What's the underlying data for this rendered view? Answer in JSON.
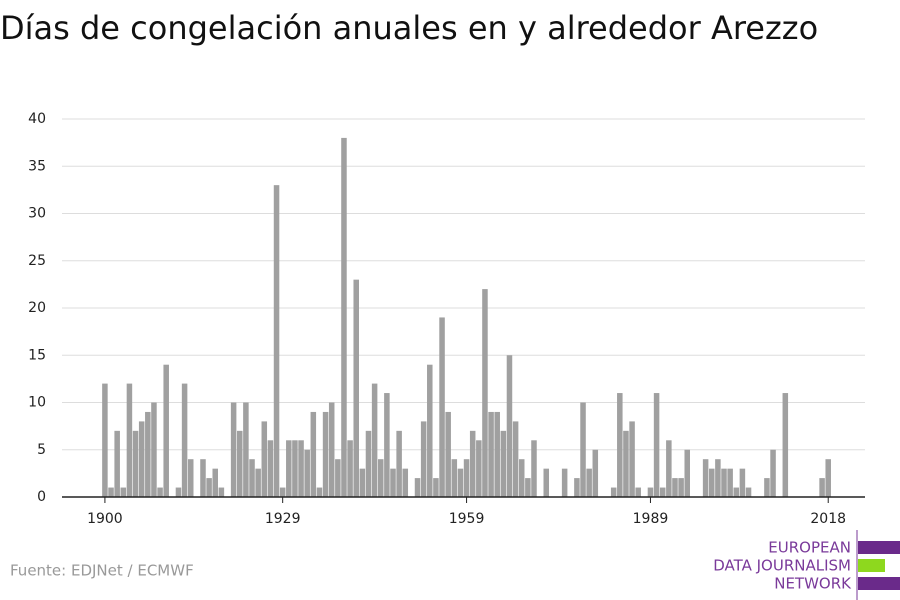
{
  "chart_data": {
    "type": "bar",
    "title": "Días de congelación anuales en y alrededor Arezzo",
    "source": "Fuente: EDJNet / ECMWF",
    "logo": [
      "EUROPEAN",
      "DATA JOURNALISM",
      "NETWORK"
    ],
    "color": "#a0a0a0",
    "x": [
      1900,
      1901,
      1902,
      1903,
      1904,
      1905,
      1906,
      1907,
      1908,
      1909,
      1910,
      1911,
      1912,
      1913,
      1914,
      1915,
      1916,
      1917,
      1918,
      1919,
      1920,
      1921,
      1922,
      1923,
      1924,
      1925,
      1926,
      1927,
      1928,
      1929,
      1930,
      1931,
      1932,
      1933,
      1934,
      1935,
      1936,
      1937,
      1938,
      1939,
      1940,
      1941,
      1942,
      1943,
      1944,
      1945,
      1946,
      1947,
      1948,
      1949,
      1950,
      1951,
      1952,
      1953,
      1954,
      1955,
      1956,
      1957,
      1958,
      1959,
      1960,
      1961,
      1962,
      1963,
      1964,
      1965,
      1966,
      1967,
      1968,
      1969,
      1970,
      1971,
      1972,
      1973,
      1974,
      1975,
      1976,
      1977,
      1978,
      1979,
      1980,
      1981,
      1982,
      1983,
      1984,
      1985,
      1986,
      1987,
      1988,
      1989,
      1990,
      1991,
      1992,
      1993,
      1994,
      1995,
      1996,
      1997,
      1998,
      1999,
      2000,
      2001,
      2002,
      2003,
      2004,
      2005,
      2006,
      2007,
      2008,
      2009,
      2010,
      2011,
      2012,
      2013,
      2014,
      2015,
      2016,
      2017,
      2018
    ],
    "values": [
      12,
      1,
      7,
      1,
      12,
      7,
      8,
      9,
      10,
      1,
      14,
      0,
      1,
      12,
      4,
      0,
      4,
      2,
      3,
      1,
      0,
      10,
      7,
      10,
      4,
      3,
      8,
      6,
      33,
      1,
      6,
      6,
      6,
      5,
      9,
      1,
      9,
      10,
      4,
      38,
      6,
      23,
      3,
      7,
      12,
      4,
      11,
      3,
      7,
      3,
      0,
      2,
      8,
      14,
      2,
      19,
      9,
      4,
      3,
      4,
      7,
      6,
      22,
      9,
      9,
      7,
      15,
      8,
      4,
      2,
      6,
      0,
      3,
      0,
      0,
      3,
      0,
      2,
      10,
      3,
      5,
      0,
      0,
      1,
      11,
      7,
      8,
      1,
      0,
      1,
      11,
      1,
      6,
      2,
      2,
      5,
      0,
      0,
      4,
      3,
      4,
      3,
      3,
      1,
      3,
      1,
      0,
      0,
      2,
      5,
      0,
      11,
      0,
      0,
      0,
      0,
      0,
      2,
      4
    ],
    "xlim": [
      1893,
      2024
    ],
    "xticks": [
      1900,
      1929,
      1959,
      1989,
      2018
    ],
    "ylim": [
      0,
      40
    ],
    "yticks": [
      0,
      5,
      10,
      15,
      20,
      25,
      30,
      35,
      40
    ],
    "grid": true
  }
}
